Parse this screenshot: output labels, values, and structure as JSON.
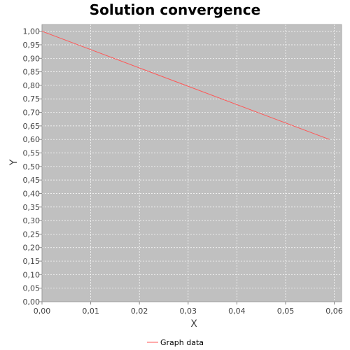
{
  "chart_data": {
    "type": "line",
    "title": "Solution convergence",
    "xlabel": "X",
    "ylabel": "Y",
    "xlim": [
      0,
      0.0615
    ],
    "ylim": [
      0,
      1.025
    ],
    "x_ticks": [
      "0,00",
      "0,01",
      "0,02",
      "0,03",
      "0,04",
      "0,05",
      "0,06"
    ],
    "x_tick_values": [
      0,
      0.01,
      0.02,
      0.03,
      0.04,
      0.05,
      0.06
    ],
    "y_ticks": [
      "0,00",
      "0,05",
      "0,10",
      "0,15",
      "0,20",
      "0,25",
      "0,30",
      "0,35",
      "0,40",
      "0,45",
      "0,50",
      "0,55",
      "0,60",
      "0,65",
      "0,70",
      "0,75",
      "0,80",
      "0,85",
      "0,90",
      "0,95",
      "1,00"
    ],
    "y_tick_values": [
      0,
      0.05,
      0.1,
      0.15,
      0.2,
      0.25,
      0.3,
      0.35,
      0.4,
      0.45,
      0.5,
      0.55,
      0.6,
      0.65,
      0.7,
      0.75,
      0.8,
      0.85,
      0.9,
      0.95,
      1.0
    ],
    "grid": true,
    "legend_position": "bottom-center",
    "series": [
      {
        "name": "Graph data",
        "color": "#ff5555",
        "x": [
          0,
          0.059
        ],
        "y": [
          1.0,
          0.6
        ]
      }
    ]
  },
  "colors": {
    "plot_background": "#c0c0c0",
    "grid": "#ffffff",
    "axis": "#888888"
  }
}
